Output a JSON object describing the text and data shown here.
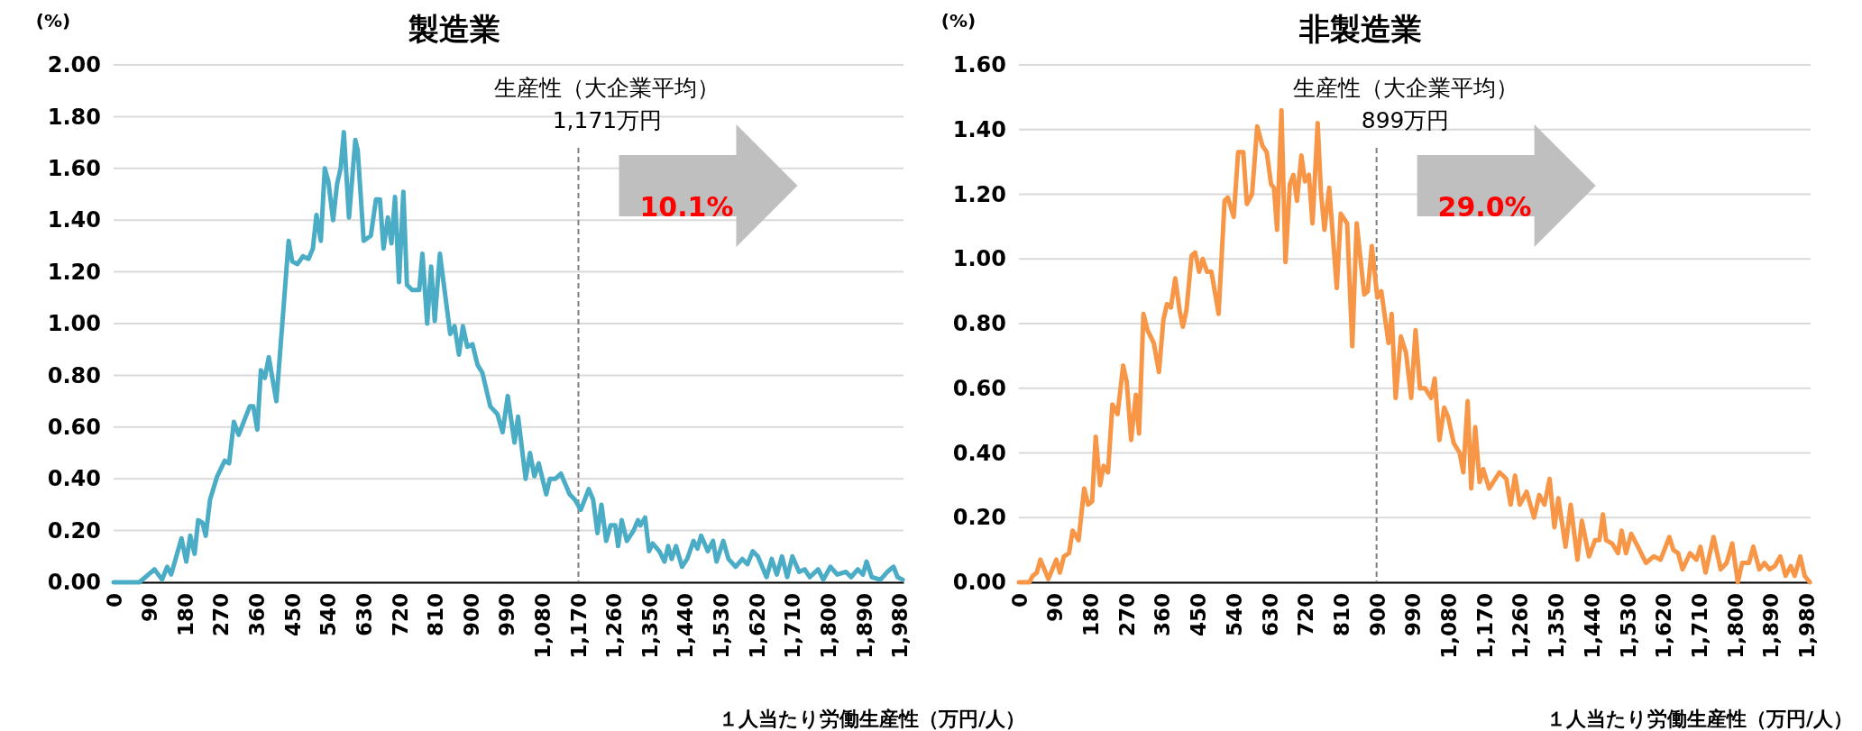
{
  "chart_data": [
    {
      "type": "line",
      "title": "製造業",
      "ylabel": "(%)",
      "xlabel": "１人当たり労働生産性（万円/人）",
      "grid": "y",
      "xlim": [
        0,
        1990
      ],
      "ylim": [
        0,
        2
      ],
      "yticks": [
        {
          "value": 0,
          "label": "0.00"
        },
        {
          "value": 0.2,
          "label": "0.20"
        },
        {
          "value": 0.4,
          "label": "0.40"
        },
        {
          "value": 0.6,
          "label": "0.60"
        },
        {
          "value": 0.8,
          "label": "0.80"
        },
        {
          "value": 1,
          "label": "1.00"
        },
        {
          "value": 1.2,
          "label": "1.20"
        },
        {
          "value": 1.4,
          "label": "1.40"
        },
        {
          "value": 1.6,
          "label": "1.60"
        },
        {
          "value": 1.8,
          "label": "1.80"
        },
        {
          "value": 2,
          "label": "2.00"
        }
      ],
      "xticks": [
        0,
        90,
        180,
        270,
        360,
        450,
        540,
        630,
        720,
        810,
        900,
        990,
        {
          "value": 1080,
          "label": "1,080"
        },
        {
          "value": 1170,
          "label": "1,170"
        },
        {
          "value": 1260,
          "label": "1,260"
        },
        {
          "value": 1350,
          "label": "1,350"
        },
        {
          "value": 1440,
          "label": "1,440"
        },
        {
          "value": 1530,
          "label": "1,530"
        },
        {
          "value": 1620,
          "label": "1,620"
        },
        {
          "value": 1710,
          "label": "1,710"
        },
        {
          "value": 1800,
          "label": "1,800"
        },
        {
          "value": 1890,
          "label": "1,890"
        },
        {
          "value": 1980,
          "label": "1,980"
        }
      ],
      "x": [
        0,
        65,
        103,
        122,
        135,
        145,
        171,
        183,
        193,
        204,
        213,
        224,
        232,
        243,
        261,
        280,
        291,
        303,
        315,
        343,
        352,
        362,
        371,
        381,
        391,
        410,
        441,
        450,
        463,
        477,
        491,
        502,
        511,
        522,
        532,
        541,
        553,
        563,
        572,
        580,
        593,
        609,
        615,
        630,
        648,
        661,
        671,
        680,
        691,
        700,
        709,
        719,
        730,
        739,
        752,
        770,
        778,
        790,
        800,
        809,
        822,
        848,
        859,
        870,
        880,
        891,
        904,
        917,
        929,
        949,
        967,
        980,
        993,
        1010,
        1019,
        1038,
        1049,
        1060,
        1071,
        1090,
        1099,
        1113,
        1127,
        1149,
        1162,
        1177,
        1197,
        1208,
        1219,
        1229,
        1241,
        1252,
        1264,
        1271,
        1280,
        1293,
        1310,
        1321,
        1327,
        1339,
        1349,
        1358,
        1375,
        1388,
        1397,
        1406,
        1417,
        1432,
        1445,
        1461,
        1471,
        1480,
        1497,
        1510,
        1519,
        1536,
        1549,
        1567,
        1584,
        1597,
        1610,
        1623,
        1645,
        1658,
        1671,
        1684,
        1697,
        1710,
        1727,
        1741,
        1754,
        1775,
        1788,
        1806,
        1823,
        1845,
        1858,
        1875,
        1888,
        1897,
        1910,
        1932,
        1949,
        1965,
        1975,
        1988
      ],
      "series": [
        {
          "color": "#4bacc6",
          "values": [
            0,
            0,
            0.05,
            0.01,
            0.06,
            0.03,
            0.17,
            0.08,
            0.18,
            0.11,
            0.24,
            0.23,
            0.18,
            0.32,
            0.41,
            0.47,
            0.46,
            0.62,
            0.57,
            0.68,
            0.68,
            0.59,
            0.82,
            0.79,
            0.87,
            0.7,
            1.32,
            1.24,
            1.23,
            1.26,
            1.25,
            1.29,
            1.42,
            1.32,
            1.6,
            1.55,
            1.4,
            1.54,
            1.6,
            1.74,
            1.41,
            1.71,
            1.67,
            1.32,
            1.34,
            1.48,
            1.48,
            1.29,
            1.41,
            1.31,
            1.49,
            1.16,
            1.51,
            1.15,
            1.13,
            1.13,
            1.27,
            1.0,
            1.22,
            1.01,
            1.27,
            0.96,
            0.99,
            0.88,
            0.99,
            0.91,
            0.92,
            0.84,
            0.81,
            0.68,
            0.65,
            0.58,
            0.72,
            0.54,
            0.64,
            0.4,
            0.5,
            0.41,
            0.46,
            0.34,
            0.4,
            0.4,
            0.42,
            0.34,
            0.32,
            0.28,
            0.36,
            0.32,
            0.19,
            0.3,
            0.16,
            0.22,
            0.22,
            0.14,
            0.24,
            0.16,
            0.2,
            0.24,
            0.22,
            0.25,
            0.12,
            0.15,
            0.12,
            0.08,
            0.14,
            0.09,
            0.14,
            0.06,
            0.09,
            0.16,
            0.13,
            0.18,
            0.12,
            0.16,
            0.08,
            0.16,
            0.09,
            0.06,
            0.09,
            0.07,
            0.12,
            0.1,
            0.02,
            0.09,
            0.03,
            0.1,
            0.02,
            0.1,
            0.04,
            0.05,
            0.02,
            0.05,
            0.01,
            0.06,
            0.03,
            0.04,
            0.02,
            0.05,
            0.03,
            0.08,
            0.02,
            0.01,
            0.04,
            0.06,
            0.02,
            0.01
          ]
        }
      ],
      "ref_lines": [
        {
          "axis": "x",
          "value": 1171,
          "label": "生産性（大企業平均）\n1,171万円",
          "color": "#7f7f7f",
          "line_style": "dashed"
        }
      ],
      "annotations": [
        "10.1%"
      ]
    },
    {
      "type": "line",
      "title": "非製造業",
      "ylabel": "(%)",
      "xlabel": "１人当たり労働生産性（万円/人）",
      "grid": "y",
      "xlim": [
        0,
        1990
      ],
      "ylim": [
        0,
        1.6
      ],
      "yticks": [
        {
          "value": 0,
          "label": "0.00"
        },
        {
          "value": 0.2,
          "label": "0.20"
        },
        {
          "value": 0.4,
          "label": "0.40"
        },
        {
          "value": 0.6,
          "label": "0.60"
        },
        {
          "value": 0.8,
          "label": "0.80"
        },
        {
          "value": 1,
          "label": "1.00"
        },
        {
          "value": 1.2,
          "label": "1.20"
        },
        {
          "value": 1.4,
          "label": "1.40"
        },
        {
          "value": 1.6,
          "label": "1.60"
        }
      ],
      "xticks": [
        0,
        90,
        180,
        270,
        360,
        450,
        540,
        630,
        720,
        810,
        900,
        990,
        {
          "value": 1080,
          "label": "1,080"
        },
        {
          "value": 1170,
          "label": "1,170"
        },
        {
          "value": 1260,
          "label": "1,260"
        },
        {
          "value": 1350,
          "label": "1,350"
        },
        {
          "value": 1440,
          "label": "1,440"
        },
        {
          "value": 1530,
          "label": "1,530"
        },
        {
          "value": 1620,
          "label": "1,620"
        },
        {
          "value": 1710,
          "label": "1,710"
        },
        {
          "value": 1800,
          "label": "1,800"
        },
        {
          "value": 1890,
          "label": "1,890"
        },
        {
          "value": 1980,
          "label": "1,980"
        }
      ],
      "x": [
        0,
        26,
        35,
        45,
        54,
        74,
        94,
        103,
        113,
        126,
        135,
        150,
        164,
        174,
        184,
        193,
        204,
        213,
        224,
        235,
        248,
        262,
        271,
        282,
        294,
        302,
        313,
        323,
        339,
        352,
        363,
        372,
        382,
        393,
        404,
        412,
        421,
        434,
        443,
        453,
        462,
        473,
        484,
        502,
        517,
        525,
        540,
        551,
        564,
        573,
        586,
        599,
        612,
        623,
        634,
        641,
        649,
        660,
        670,
        681,
        690,
        699,
        710,
        719,
        729,
        738,
        751,
        759,
        768,
        780,
        799,
        809,
        825,
        838,
        849,
        868,
        877,
        887,
        901,
        911,
        929,
        937,
        947,
        960,
        973,
        986,
        997,
        1008,
        1021,
        1036,
        1045,
        1057,
        1069,
        1079,
        1093,
        1108,
        1117,
        1128,
        1137,
        1147,
        1158,
        1167,
        1182,
        1208,
        1225,
        1236,
        1247,
        1259,
        1276,
        1295,
        1308,
        1321,
        1334,
        1346,
        1356,
        1374,
        1387,
        1404,
        1415,
        1433,
        1448,
        1459,
        1468,
        1476,
        1491,
        1506,
        1515,
        1526,
        1539,
        1556,
        1576,
        1596,
        1613,
        1635,
        1645,
        1657,
        1668,
        1687,
        1703,
        1713,
        1726,
        1746,
        1764,
        1779,
        1793,
        1807,
        1818,
        1835,
        1846,
        1861,
        1874,
        1887,
        1900,
        1914,
        1927,
        1940,
        1950,
        1964,
        1975,
        1988
      ],
      "series": [
        {
          "color": "#f79646",
          "values": [
            0,
            0,
            0.02,
            0.03,
            0.07,
            0.01,
            0.07,
            0.03,
            0.08,
            0.09,
            0.16,
            0.13,
            0.29,
            0.24,
            0.25,
            0.45,
            0.3,
            0.36,
            0.34,
            0.55,
            0.52,
            0.67,
            0.62,
            0.44,
            0.58,
            0.46,
            0.83,
            0.78,
            0.74,
            0.65,
            0.81,
            0.86,
            0.85,
            0.94,
            0.84,
            0.79,
            0.84,
            1.01,
            1.02,
            0.96,
            1.0,
            0.96,
            0.96,
            0.83,
            1.18,
            1.19,
            1.13,
            1.33,
            1.33,
            1.17,
            1.2,
            1.41,
            1.35,
            1.33,
            1.23,
            1.22,
            1.09,
            1.46,
            0.99,
            1.23,
            1.26,
            1.18,
            1.32,
            1.24,
            1.26,
            1.11,
            1.42,
            1.21,
            1.09,
            1.22,
            0.91,
            1.14,
            1.11,
            0.73,
            1.11,
            0.89,
            0.9,
            1.04,
            0.88,
            0.9,
            0.74,
            0.83,
            0.57,
            0.76,
            0.71,
            0.57,
            0.78,
            0.6,
            0.6,
            0.57,
            0.63,
            0.44,
            0.54,
            0.51,
            0.43,
            0.4,
            0.34,
            0.56,
            0.29,
            0.48,
            0.31,
            0.35,
            0.29,
            0.34,
            0.32,
            0.24,
            0.33,
            0.24,
            0.28,
            0.2,
            0.27,
            0.24,
            0.32,
            0.17,
            0.26,
            0.11,
            0.24,
            0.07,
            0.19,
            0.08,
            0.13,
            0.13,
            0.21,
            0.13,
            0.12,
            0.09,
            0.16,
            0.09,
            0.15,
            0.11,
            0.06,
            0.08,
            0.07,
            0.14,
            0.1,
            0.09,
            0.04,
            0.09,
            0.07,
            0.11,
            0.03,
            0.14,
            0.04,
            0.06,
            0.12,
            0.0,
            0.06,
            0.06,
            0.11,
            0.04,
            0.06,
            0.04,
            0.05,
            0.08,
            0.02,
            0.05,
            0.02,
            0.08,
            0.02,
            0.0
          ]
        }
      ],
      "ref_lines": [
        {
          "axis": "x",
          "value": 899,
          "label": "生産性（大企業平均）\n899万円",
          "color": "#7f7f7f",
          "line_style": "dashed"
        }
      ],
      "annotations": [
        "29.0%"
      ]
    }
  ]
}
